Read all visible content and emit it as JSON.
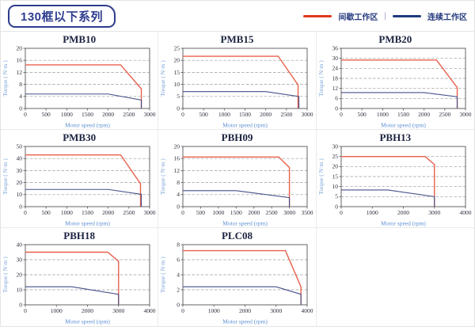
{
  "header": {
    "title": "130框以下系列",
    "legend": {
      "items": [
        {
          "label": "间歇工作区",
          "color": "#e0391e"
        },
        {
          "label": "连续工作区",
          "color": "#1f3a7d"
        }
      ],
      "separator": "|"
    }
  },
  "chart_style": {
    "curve_red": "#e8604c",
    "curve_blue": "#44518a",
    "grid_color": "#9a9a9a",
    "axis_color": "#555555",
    "tick_label_color": "#2f2f3f",
    "axis_label_color": "#5b8fd4",
    "ylabel_color": "#7aa2d8",
    "title_color": "#1c2340"
  },
  "chart_data": [
    {
      "type": "line",
      "title": "PMB10",
      "xlabel": "Motor speed (rpm)",
      "ylabel": "Torque ( N·m )",
      "xlim": [
        0,
        3000
      ],
      "xticks": [
        0,
        500,
        1000,
        1500,
        2000,
        2500,
        3000
      ],
      "ylim": [
        0,
        20
      ],
      "yticks": [
        0,
        4,
        8,
        12,
        16,
        20
      ],
      "grid": "dashed-horizontal",
      "legend_position": "none",
      "series": [
        {
          "name": "间歇工作区",
          "color": "#e8604c",
          "points": [
            [
              0,
              14.5
            ],
            [
              2300,
              14.5
            ],
            [
              2800,
              6.5
            ],
            [
              2800,
              0
            ]
          ]
        },
        {
          "name": "连续工作区",
          "color": "#44518a",
          "points": [
            [
              0,
              4.8
            ],
            [
              2000,
              4.8
            ],
            [
              2800,
              2.8
            ],
            [
              2800,
              0
            ]
          ]
        }
      ]
    },
    {
      "type": "line",
      "title": "PMB15",
      "xlabel": "Motor speed (rpm)",
      "ylabel": "Torque ( N·m )",
      "xlim": [
        0,
        3000
      ],
      "xticks": [
        0,
        500,
        1000,
        1500,
        2000,
        2500,
        3000
      ],
      "ylim": [
        0,
        25
      ],
      "yticks": [
        0,
        5,
        10,
        15,
        20,
        25
      ],
      "grid": "dashed-horizontal",
      "legend_position": "none",
      "series": [
        {
          "name": "间歇工作区",
          "color": "#e8604c",
          "points": [
            [
              0,
              21.7
            ],
            [
              2300,
              21.7
            ],
            [
              2780,
              9.8
            ],
            [
              2780,
              0
            ]
          ]
        },
        {
          "name": "连续工作区",
          "color": "#44518a",
          "points": [
            [
              0,
              7
            ],
            [
              2000,
              7
            ],
            [
              2800,
              5
            ],
            [
              2800,
              0
            ]
          ]
        }
      ]
    },
    {
      "type": "line",
      "title": "PMB20",
      "xlabel": "Motor speed (rpm)",
      "ylabel": "Torque ( N·m )",
      "xlim": [
        0,
        3000
      ],
      "xticks": [
        0,
        500,
        1000,
        1500,
        2000,
        2500,
        3000
      ],
      "ylim": [
        0,
        36
      ],
      "yticks": [
        0,
        6,
        12,
        18,
        24,
        30,
        36
      ],
      "grid": "dashed-horizontal",
      "legend_position": "none",
      "series": [
        {
          "name": "间歇工作区",
          "color": "#e8604c",
          "points": [
            [
              0,
              29
            ],
            [
              2300,
              29
            ],
            [
              2800,
              12.5
            ],
            [
              2800,
              0
            ]
          ]
        },
        {
          "name": "连续工作区",
          "color": "#44518a",
          "points": [
            [
              0,
              9.5
            ],
            [
              2000,
              9.5
            ],
            [
              2800,
              7
            ],
            [
              2800,
              0
            ]
          ]
        }
      ]
    },
    {
      "type": "line",
      "title": "PMB30",
      "xlabel": "Motor speed (rpm)",
      "ylabel": "Torque ( N·m )",
      "xlim": [
        0,
        3000
      ],
      "xticks": [
        0,
        500,
        1000,
        1500,
        2000,
        2500,
        3000
      ],
      "ylim": [
        0,
        50
      ],
      "yticks": [
        0,
        10,
        20,
        30,
        40,
        50
      ],
      "grid": "dashed-horizontal",
      "legend_position": "none",
      "series": [
        {
          "name": "间歇工作区",
          "color": "#e8604c",
          "points": [
            [
              0,
              43
            ],
            [
              2300,
              43
            ],
            [
              2780,
              19
            ],
            [
              2780,
              0
            ]
          ]
        },
        {
          "name": "连续工作区",
          "color": "#44518a",
          "points": [
            [
              0,
              14.3
            ],
            [
              2000,
              14.3
            ],
            [
              2750,
              10.5
            ],
            [
              2800,
              10.4
            ],
            [
              2800,
              0
            ]
          ]
        }
      ]
    },
    {
      "type": "line",
      "title": "PBH09",
      "xlabel": "Motor speed (rpm)",
      "ylabel": "Torque ( N·m )",
      "xlim": [
        0,
        3500
      ],
      "xticks": [
        0,
        500,
        1000,
        1500,
        2000,
        2500,
        3000,
        3500
      ],
      "ylim": [
        0,
        20
      ],
      "yticks": [
        0,
        4,
        8,
        12,
        16,
        20
      ],
      "grid": "dashed-horizontal",
      "legend_position": "none",
      "series": [
        {
          "name": "间歇工作区",
          "color": "#e8604c",
          "points": [
            [
              0,
              16.5
            ],
            [
              2700,
              16.5
            ],
            [
              3000,
              13
            ],
            [
              3000,
              0
            ]
          ]
        },
        {
          "name": "连续工作区",
          "color": "#44518a",
          "points": [
            [
              0,
              5.3
            ],
            [
              1500,
              5.3
            ],
            [
              3000,
              3
            ],
            [
              3000,
              0
            ]
          ]
        }
      ]
    },
    {
      "type": "line",
      "title": "PBH13",
      "xlabel": "Motor speed (rpm)",
      "ylabel": "Torque ( N·m )",
      "xlim": [
        0,
        4000
      ],
      "xticks": [
        0,
        1000,
        2000,
        3000,
        4000
      ],
      "ylim": [
        0,
        30
      ],
      "yticks": [
        0,
        5,
        10,
        15,
        20,
        25,
        30
      ],
      "grid": "dashed-horizontal",
      "legend_position": "none",
      "series": [
        {
          "name": "间歇工作区",
          "color": "#e8604c",
          "points": [
            [
              0,
              25
            ],
            [
              2700,
              25
            ],
            [
              3000,
              21
            ],
            [
              3000,
              0
            ]
          ]
        },
        {
          "name": "连续工作区",
          "color": "#44518a",
          "points": [
            [
              0,
              8.3
            ],
            [
              1500,
              8.3
            ],
            [
              3000,
              5
            ],
            [
              3000,
              0
            ]
          ]
        }
      ]
    },
    {
      "type": "line",
      "title": "PBH18",
      "xlabel": "Motor speed (rpm)",
      "ylabel": "Torque ( N·m )",
      "xlim": [
        0,
        4000
      ],
      "xticks": [
        0,
        1000,
        2000,
        3000,
        4000
      ],
      "ylim": [
        0,
        40
      ],
      "yticks": [
        0,
        10,
        20,
        30,
        40
      ],
      "grid": "dashed-horizontal",
      "legend_position": "none",
      "series": [
        {
          "name": "间歇工作区",
          "color": "#e8604c",
          "points": [
            [
              0,
              35
            ],
            [
              2650,
              35
            ],
            [
              3000,
              29
            ],
            [
              3000,
              0
            ]
          ]
        },
        {
          "name": "连续工作区",
          "color": "#44518a",
          "points": [
            [
              0,
              12
            ],
            [
              1500,
              12
            ],
            [
              3000,
              7
            ],
            [
              3000,
              0
            ]
          ]
        }
      ]
    },
    {
      "type": "line",
      "title": "PLC08",
      "xlabel": "Motor speed (rpm)",
      "ylabel": "Torque ( N·m )",
      "xlim": [
        0,
        4000
      ],
      "xticks": [
        0,
        1000,
        2000,
        3000,
        4000
      ],
      "ylim": [
        0,
        8
      ],
      "yticks": [
        0,
        2,
        4,
        6,
        8
      ],
      "grid": "dashed-horizontal",
      "legend_position": "none",
      "series": [
        {
          "name": "间歇工作区",
          "color": "#e8604c",
          "points": [
            [
              0,
              7.2
            ],
            [
              3300,
              7.2
            ],
            [
              3800,
              2.4
            ],
            [
              3800,
              0
            ]
          ]
        },
        {
          "name": "连续工作区",
          "color": "#44518a",
          "points": [
            [
              0,
              2.4
            ],
            [
              3000,
              2.4
            ],
            [
              3800,
              1.4
            ],
            [
              3800,
              0
            ]
          ]
        }
      ]
    }
  ]
}
